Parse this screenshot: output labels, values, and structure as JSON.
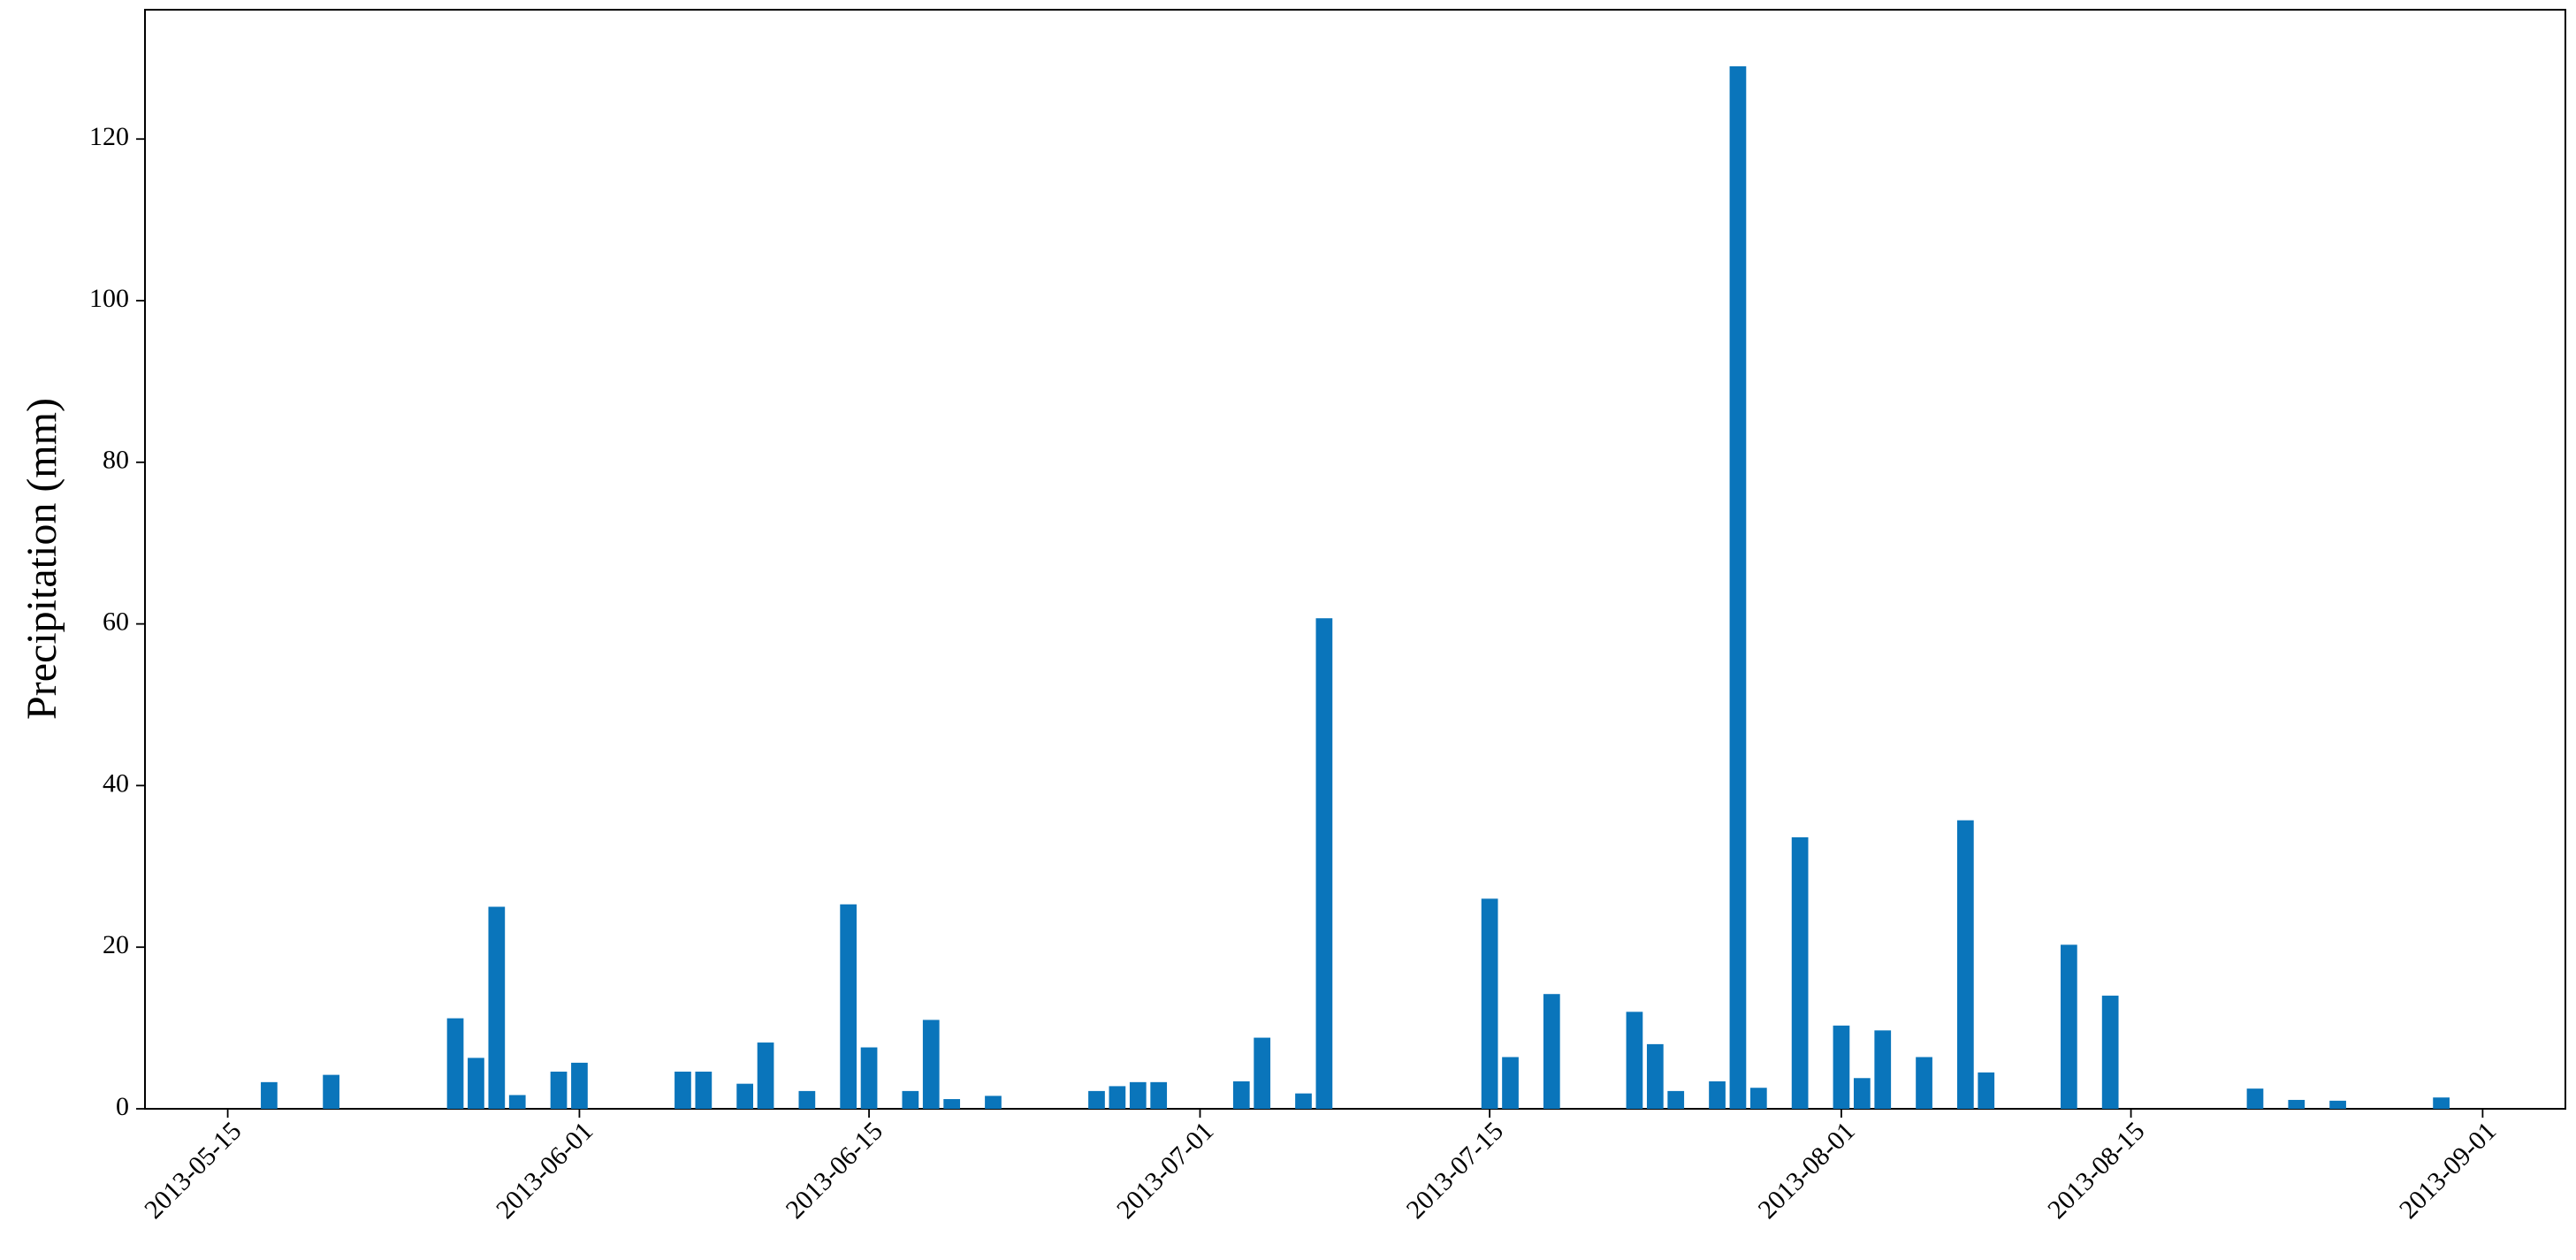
{
  "chart_data": {
    "type": "bar",
    "y_label": "Precipitation (mm)",
    "color": "#0a75bb",
    "x": [
      "2013-05-17",
      "2013-05-20",
      "2013-05-26",
      "2013-05-27",
      "2013-05-28",
      "2013-05-29",
      "2013-05-31",
      "2013-06-01",
      "2013-06-06",
      "2013-06-07",
      "2013-06-09",
      "2013-06-10",
      "2013-06-12",
      "2013-06-14",
      "2013-06-15",
      "2013-06-17",
      "2013-06-18",
      "2013-06-19",
      "2013-06-21",
      "2013-06-26",
      "2013-06-27",
      "2013-06-28",
      "2013-06-29",
      "2013-07-03",
      "2013-07-04",
      "2013-07-06",
      "2013-07-07",
      "2013-07-15",
      "2013-07-16",
      "2013-07-18",
      "2013-07-22",
      "2013-07-23",
      "2013-07-24",
      "2013-07-26",
      "2013-07-27",
      "2013-07-28",
      "2013-07-30",
      "2013-08-01",
      "2013-08-02",
      "2013-08-03",
      "2013-08-05",
      "2013-08-07",
      "2013-08-08",
      "2013-08-12",
      "2013-08-14",
      "2013-08-21",
      "2013-08-23",
      "2013-08-25",
      "2013-08-30"
    ],
    "values": [
      3.3,
      4.2,
      11.2,
      6.3,
      25,
      1.7,
      4.6,
      5.7,
      4.6,
      4.6,
      3.1,
      8.2,
      2.2,
      25.3,
      7.6,
      2.2,
      11,
      1.2,
      1.6,
      2.2,
      2.8,
      3.3,
      3.3,
      3.4,
      8.8,
      1.9,
      60.7,
      26,
      6.4,
      14.2,
      12,
      8,
      2.2,
      3.4,
      129,
      2.6,
      33.6,
      10.3,
      3.8,
      9.7,
      6.4,
      35.7,
      4.5,
      20.3,
      14,
      2.5,
      1.1,
      1,
      1.4
    ],
    "xlim": [
      "2013-05-11",
      "2013-09-05"
    ],
    "xticks": [
      "2013-05-15",
      "2013-06-01",
      "2013-06-15",
      "2013-07-01",
      "2013-07-15",
      "2013-08-01",
      "2013-08-15",
      "2013-09-01"
    ],
    "ylim": [
      0,
      136
    ],
    "yticks": [
      0,
      20,
      40,
      60,
      80,
      100,
      120
    ]
  }
}
